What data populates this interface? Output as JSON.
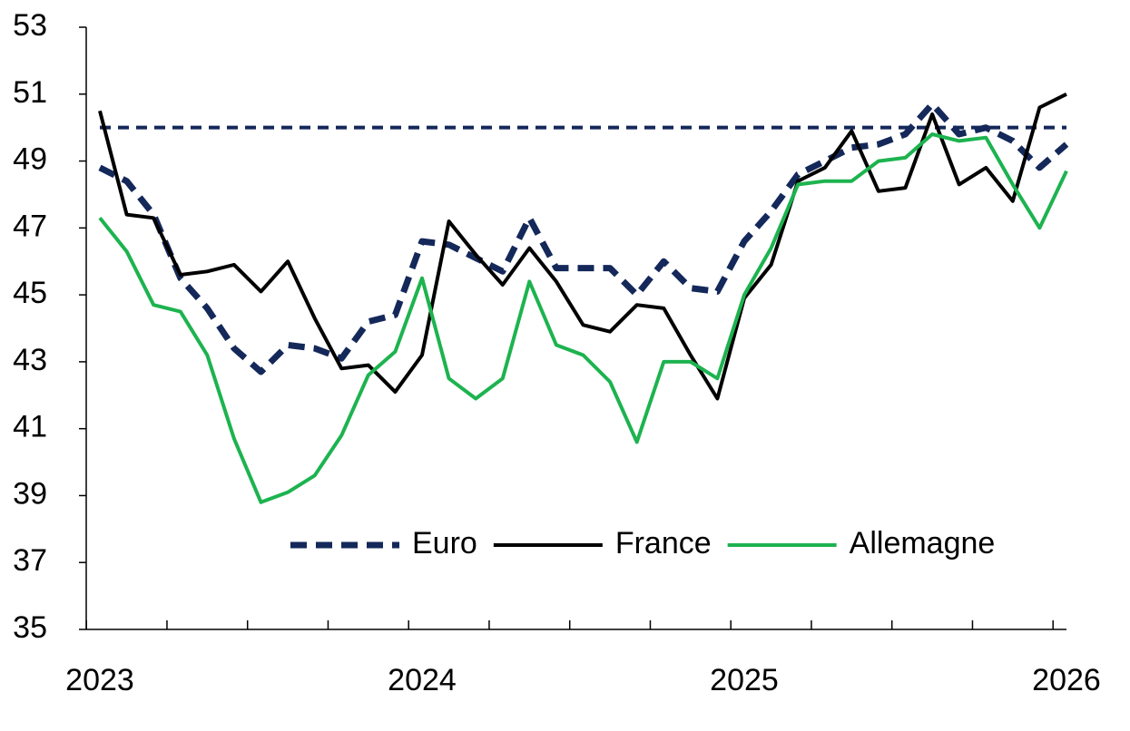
{
  "chart_data": {
    "type": "line",
    "categories": [
      "2023",
      null,
      null,
      null,
      null,
      null,
      null,
      null,
      null,
      null,
      null,
      null,
      "2024",
      null,
      null,
      null,
      null,
      null,
      null,
      null,
      null,
      null,
      null,
      null,
      "2025",
      null,
      null,
      null,
      null,
      null,
      null,
      null,
      null,
      null,
      null,
      null,
      "2026"
    ],
    "series": [
      {
        "name": "Euro",
        "color": "#14285a",
        "linestyle": "dashed",
        "values": [
          48.8,
          48.4,
          47.4,
          45.5,
          44.6,
          43.4,
          42.7,
          43.5,
          43.4,
          43.1,
          44.2,
          44.4,
          46.6,
          46.5,
          46.1,
          45.7,
          47.3,
          45.8,
          45.8,
          45.8,
          45.0,
          46.0,
          45.2,
          45.1,
          46.6,
          47.5,
          48.6,
          49.0,
          49.4,
          49.5,
          49.8,
          50.7,
          49.8,
          50.0,
          49.6,
          48.8,
          49.5
        ]
      },
      {
        "name": "France",
        "color": "#000000",
        "linestyle": "solid",
        "values": [
          50.5,
          47.4,
          47.3,
          45.6,
          45.7,
          45.9,
          45.1,
          46.0,
          44.3,
          42.8,
          42.9,
          42.1,
          43.2,
          47.2,
          46.2,
          45.3,
          46.4,
          45.4,
          44.1,
          43.9,
          44.7,
          44.6,
          43.2,
          41.9,
          44.9,
          45.9,
          48.4,
          48.8,
          49.9,
          48.1,
          48.2,
          50.4,
          48.3,
          48.8,
          47.8,
          50.6,
          51.0
        ]
      },
      {
        "name": "Allemagne",
        "color": "#1db34f",
        "linestyle": "solid",
        "values": [
          47.3,
          46.3,
          44.7,
          44.5,
          43.2,
          40.7,
          38.8,
          39.1,
          39.6,
          40.8,
          42.6,
          43.3,
          45.5,
          42.5,
          41.9,
          42.5,
          45.4,
          43.5,
          43.2,
          42.4,
          40.6,
          43.0,
          43.0,
          42.5,
          45.0,
          46.4,
          48.3,
          48.4,
          48.4,
          49.0,
          49.1,
          49.8,
          49.6,
          49.7,
          48.3,
          47.0,
          48.7
        ]
      }
    ],
    "hline": 50,
    "ylim": [
      35,
      53
    ],
    "yticks": [
      35,
      37,
      39,
      41,
      43,
      45,
      47,
      49,
      51,
      53
    ],
    "legend": "lower right"
  }
}
